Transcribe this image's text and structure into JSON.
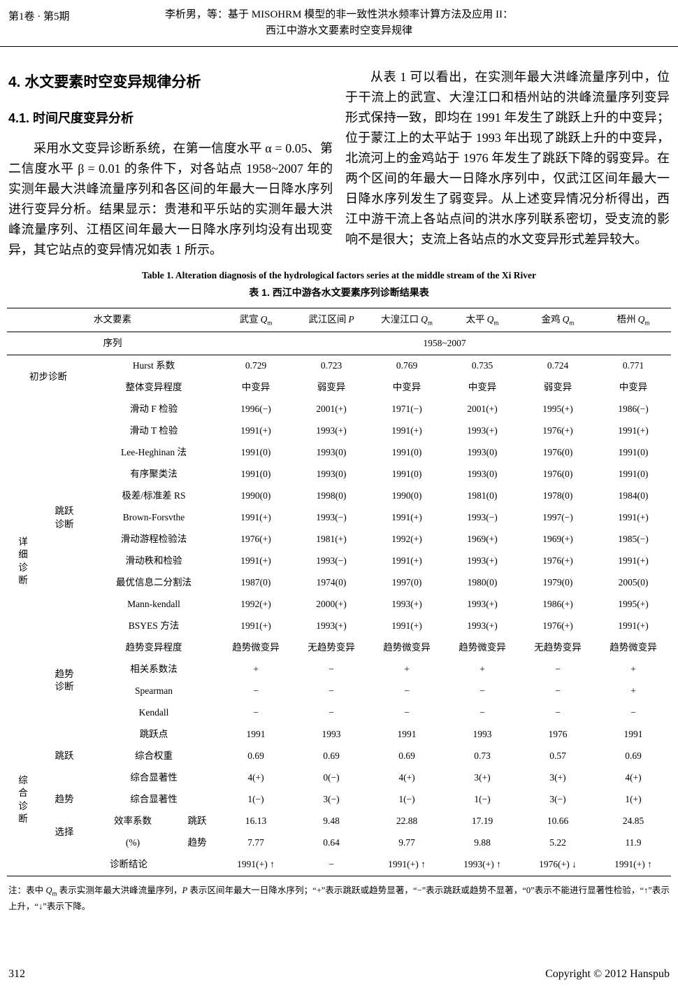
{
  "header": {
    "issue": "第1卷 · 第5期",
    "title_line1": "李析男，等：基于 MISOHRM 模型的非一致性洪水频率计算方法及应用 II：",
    "title_line2": "西江中游水文要素时空变异规律"
  },
  "body": {
    "h1": "4. 水文要素时空变异规律分析",
    "h2": "4.1. 时间尺度变异分析",
    "para_left": "采用水文变异诊断系统，在第一信度水平 α = 0.05、第二信度水平 β = 0.01 的条件下，对各站点 1958~2007 年的实测年最大洪峰流量序列和各区间的年最大一日降水序列进行变异分析。结果显示：贵港和平乐站的实测年最大洪峰流量序列、江梧区间年最大一日降水序列均没有出现变异，其它站点的变异情况如表 1 所示。",
    "para_right": "从表 1 可以看出，在实测年最大洪峰流量序列中，位于干流上的武宣、大湟江口和梧州站的洪峰流量序列变异形式保持一致，即均在 1991 年发生了跳跃上升的中变异；位于蒙江上的太平站于 1993 年出现了跳跃上升的中变异，北流河上的金鸡站于 1976 年发生了跳跃下降的弱变异。在两个区间的年最大一日降水序列中，仅武江区间年最大一日降水序列发生了弱变异。从上述变异情况分析得出，西江中游干流上各站点间的洪水序列联系密切，受支流的影响不是很大；支流上各站点的水文变异形式差异较大。"
  },
  "table": {
    "caption_en": "Table 1. Alteration diagnosis of the hydrological factors series at the middle stream of the Xi River",
    "caption_zh": "表 1. 西江中游各水文要素序列诊断结果表",
    "header": {
      "factor_label": "水文要素",
      "series_label": "序列",
      "series_value": "1958~2007",
      "stations": [
        {
          "name": "武宣",
          "var": "Q",
          "sub": "m"
        },
        {
          "name": "武江区间",
          "var": "P",
          "sub": ""
        },
        {
          "name": "大湟江口",
          "var": "Q",
          "sub": "m"
        },
        {
          "name": "太平",
          "var": "Q",
          "sub": "m"
        },
        {
          "name": "金鸡",
          "var": "Q",
          "sub": "m"
        },
        {
          "name": "梧州",
          "var": "Q",
          "sub": "m"
        }
      ]
    },
    "rows": [
      [
        {
          "t": "初步诊断",
          "rs": 2,
          "cs": 2,
          "cls": "grp"
        },
        {
          "t": "Hurst 系数",
          "cs": 2,
          "cls": "lbl"
        },
        {
          "t": "0.729"
        },
        {
          "t": "0.723"
        },
        {
          "t": "0.769"
        },
        {
          "t": "0.735"
        },
        {
          "t": "0.724"
        },
        {
          "t": "0.771"
        }
      ],
      [
        {
          "t": "整体变异程度",
          "cs": 2,
          "cls": "lbl"
        },
        {
          "t": "中变异"
        },
        {
          "t": "弱变异"
        },
        {
          "t": "中变异"
        },
        {
          "t": "中变异"
        },
        {
          "t": "弱变异"
        },
        {
          "t": "中变异"
        }
      ],
      [
        {
          "t": "详\n细\n诊\n断",
          "rs": 15,
          "cls": "vert grp"
        },
        {
          "t": "跳跃\n诊断",
          "rs": 11,
          "cls": "grp"
        },
        {
          "t": "滑动 F 检验",
          "cs": 2,
          "cls": "lbl"
        },
        {
          "t": "1996(−)"
        },
        {
          "t": "2001(+)"
        },
        {
          "t": "1971(−)"
        },
        {
          "t": "2001(+)"
        },
        {
          "t": "1995(+)"
        },
        {
          "t": "1986(−)"
        }
      ],
      [
        {
          "t": "滑动 T 检验",
          "cs": 2,
          "cls": "lbl"
        },
        {
          "t": "1991(+)"
        },
        {
          "t": "1993(+)"
        },
        {
          "t": "1991(+)"
        },
        {
          "t": "1993(+)"
        },
        {
          "t": "1976(+)"
        },
        {
          "t": "1991(+)"
        }
      ],
      [
        {
          "t": "Lee-Heghinan 法",
          "cs": 2,
          "cls": "lbl"
        },
        {
          "t": "1991(0)"
        },
        {
          "t": "1993(0)"
        },
        {
          "t": "1991(0)"
        },
        {
          "t": "1993(0)"
        },
        {
          "t": "1976(0)"
        },
        {
          "t": "1991(0)"
        }
      ],
      [
        {
          "t": "有序聚类法",
          "cs": 2,
          "cls": "lbl"
        },
        {
          "t": "1991(0)"
        },
        {
          "t": "1993(0)"
        },
        {
          "t": "1991(0)"
        },
        {
          "t": "1993(0)"
        },
        {
          "t": "1976(0)"
        },
        {
          "t": "1991(0)"
        }
      ],
      [
        {
          "t": "极差/标准差 RS",
          "cs": 2,
          "cls": "lbl"
        },
        {
          "t": "1990(0)"
        },
        {
          "t": "1998(0)"
        },
        {
          "t": "1990(0)"
        },
        {
          "t": "1981(0)"
        },
        {
          "t": "1978(0)"
        },
        {
          "t": "1984(0)"
        }
      ],
      [
        {
          "t": "Brown-Forsvthe",
          "cs": 2,
          "cls": "lbl"
        },
        {
          "t": "1991(+)"
        },
        {
          "t": "1993(−)"
        },
        {
          "t": "1991(+)"
        },
        {
          "t": "1993(−)"
        },
        {
          "t": "1997(−)"
        },
        {
          "t": "1991(+)"
        }
      ],
      [
        {
          "t": "滑动游程检验法",
          "cs": 2,
          "cls": "lbl"
        },
        {
          "t": "1976(+)"
        },
        {
          "t": "1981(+)"
        },
        {
          "t": "1992(+)"
        },
        {
          "t": "1969(+)"
        },
        {
          "t": "1969(+)"
        },
        {
          "t": "1985(−)"
        }
      ],
      [
        {
          "t": "滑动秩和检验",
          "cs": 2,
          "cls": "lbl"
        },
        {
          "t": "1991(+)"
        },
        {
          "t": "1993(−)"
        },
        {
          "t": "1991(+)"
        },
        {
          "t": "1993(+)"
        },
        {
          "t": "1976(+)"
        },
        {
          "t": "1991(+)"
        }
      ],
      [
        {
          "t": "最优信息二分割法",
          "cs": 2,
          "cls": "lbl"
        },
        {
          "t": "1987(0)"
        },
        {
          "t": "1974(0)"
        },
        {
          "t": "1997(0)"
        },
        {
          "t": "1980(0)"
        },
        {
          "t": "1979(0)"
        },
        {
          "t": "2005(0)"
        }
      ],
      [
        {
          "t": "Mann-kendall",
          "cs": 2,
          "cls": "lbl"
        },
        {
          "t": "1992(+)"
        },
        {
          "t": "2000(+)"
        },
        {
          "t": "1993(+)"
        },
        {
          "t": "1993(+)"
        },
        {
          "t": "1986(+)"
        },
        {
          "t": "1995(+)"
        }
      ],
      [
        {
          "t": "BSYES 方法",
          "cs": 2,
          "cls": "lbl"
        },
        {
          "t": "1991(+)"
        },
        {
          "t": "1993(+)"
        },
        {
          "t": "1991(+)"
        },
        {
          "t": "1993(+)"
        },
        {
          "t": "1976(+)"
        },
        {
          "t": "1991(+)"
        }
      ],
      [
        {
          "t": "趋势\n诊断",
          "rs": 4,
          "cls": "grp"
        },
        {
          "t": "趋势变异程度",
          "cs": 2,
          "cls": "lbl"
        },
        {
          "t": "趋势微变异"
        },
        {
          "t": "无趋势变异"
        },
        {
          "t": "趋势微变异"
        },
        {
          "t": "趋势微变异"
        },
        {
          "t": "无趋势变异"
        },
        {
          "t": "趋势微变异"
        }
      ],
      [
        {
          "t": "相关系数法",
          "cs": 2,
          "cls": "lbl"
        },
        {
          "t": "+"
        },
        {
          "t": "−"
        },
        {
          "t": "+"
        },
        {
          "t": "+"
        },
        {
          "t": "−"
        },
        {
          "t": "+"
        }
      ],
      [
        {
          "t": "Spearman",
          "cs": 2,
          "cls": "lbl"
        },
        {
          "t": "−"
        },
        {
          "t": "−"
        },
        {
          "t": "−"
        },
        {
          "t": "−"
        },
        {
          "t": "−"
        },
        {
          "t": "+"
        }
      ],
      [
        {
          "t": "Kendall",
          "cs": 2,
          "cls": "lbl"
        },
        {
          "t": "−"
        },
        {
          "t": "−"
        },
        {
          "t": "−"
        },
        {
          "t": "−"
        },
        {
          "t": "−"
        },
        {
          "t": "−"
        }
      ],
      [
        {
          "t": "综\n合\n诊\n断",
          "rs": 7,
          "cls": "vert grp"
        },
        {
          "t": "跳跃",
          "rs": 3,
          "cls": "grp"
        },
        {
          "t": "跳跃点",
          "cs": 2,
          "cls": "lbl"
        },
        {
          "t": "1991"
        },
        {
          "t": "1993"
        },
        {
          "t": "1991"
        },
        {
          "t": "1993"
        },
        {
          "t": "1976"
        },
        {
          "t": "1991"
        }
      ],
      [
        {
          "t": "综合权重",
          "cs": 2,
          "cls": "lbl"
        },
        {
          "t": "0.69"
        },
        {
          "t": "0.69"
        },
        {
          "t": "0.69"
        },
        {
          "t": "0.73"
        },
        {
          "t": "0.57"
        },
        {
          "t": "0.69"
        }
      ],
      [
        {
          "t": "综合显著性",
          "cs": 2,
          "cls": "lbl"
        },
        {
          "t": "4(+)"
        },
        {
          "t": "0(−)"
        },
        {
          "t": "4(+)"
        },
        {
          "t": "3(+)"
        },
        {
          "t": "3(+)"
        },
        {
          "t": "4(+)"
        }
      ],
      [
        {
          "t": "趋势",
          "cls": "grp"
        },
        {
          "t": "综合显著性",
          "cs": 2,
          "cls": "lbl"
        },
        {
          "t": "1(−)"
        },
        {
          "t": "3(−)"
        },
        {
          "t": "1(−)"
        },
        {
          "t": "1(−)"
        },
        {
          "t": "3(−)"
        },
        {
          "t": "1(+)"
        }
      ],
      [
        {
          "t": "选择",
          "rs": 2,
          "cls": "grp"
        },
        {
          "t": "效率系数",
          "cls": "lbl"
        },
        {
          "t": "跳跃",
          "cls": "lbl"
        },
        {
          "t": "16.13"
        },
        {
          "t": "9.48"
        },
        {
          "t": "22.88"
        },
        {
          "t": "17.19"
        },
        {
          "t": "10.66"
        },
        {
          "t": "24.85"
        }
      ],
      [
        {
          "t": "(%)",
          "cls": "lbl"
        },
        {
          "t": "趋势",
          "cls": "lbl"
        },
        {
          "t": "7.77"
        },
        {
          "t": "0.64"
        },
        {
          "t": "9.77"
        },
        {
          "t": "9.88"
        },
        {
          "t": "5.22"
        },
        {
          "t": "11.9"
        }
      ],
      [
        {
          "t": "诊断结论",
          "cs": 3,
          "cls": "lbl"
        },
        {
          "t": "1991(+) ↑"
        },
        {
          "t": "−"
        },
        {
          "t": "1991(+) ↑"
        },
        {
          "t": "1993(+) ↑"
        },
        {
          "t": "1976(+) ↓"
        },
        {
          "t": "1991(+) ↑"
        }
      ]
    ]
  },
  "note": {
    "p1": "注：表中 ",
    "q_var": "Q",
    "q_sub": "m",
    "p2": " 表示实测年最大洪峰流量序列，",
    "p_var": "P",
    "p3": " 表示区间年最大一日降水序列；“+”表示跳跃或趋势显著，“−”表示跳跃或趋势不显著，“0”表示不能进行显著性检验，“↑”表示上升，“↓”表示下降。"
  },
  "footer": {
    "page_number": "312",
    "copyright": "Copyright © 2012 Hanspub"
  }
}
